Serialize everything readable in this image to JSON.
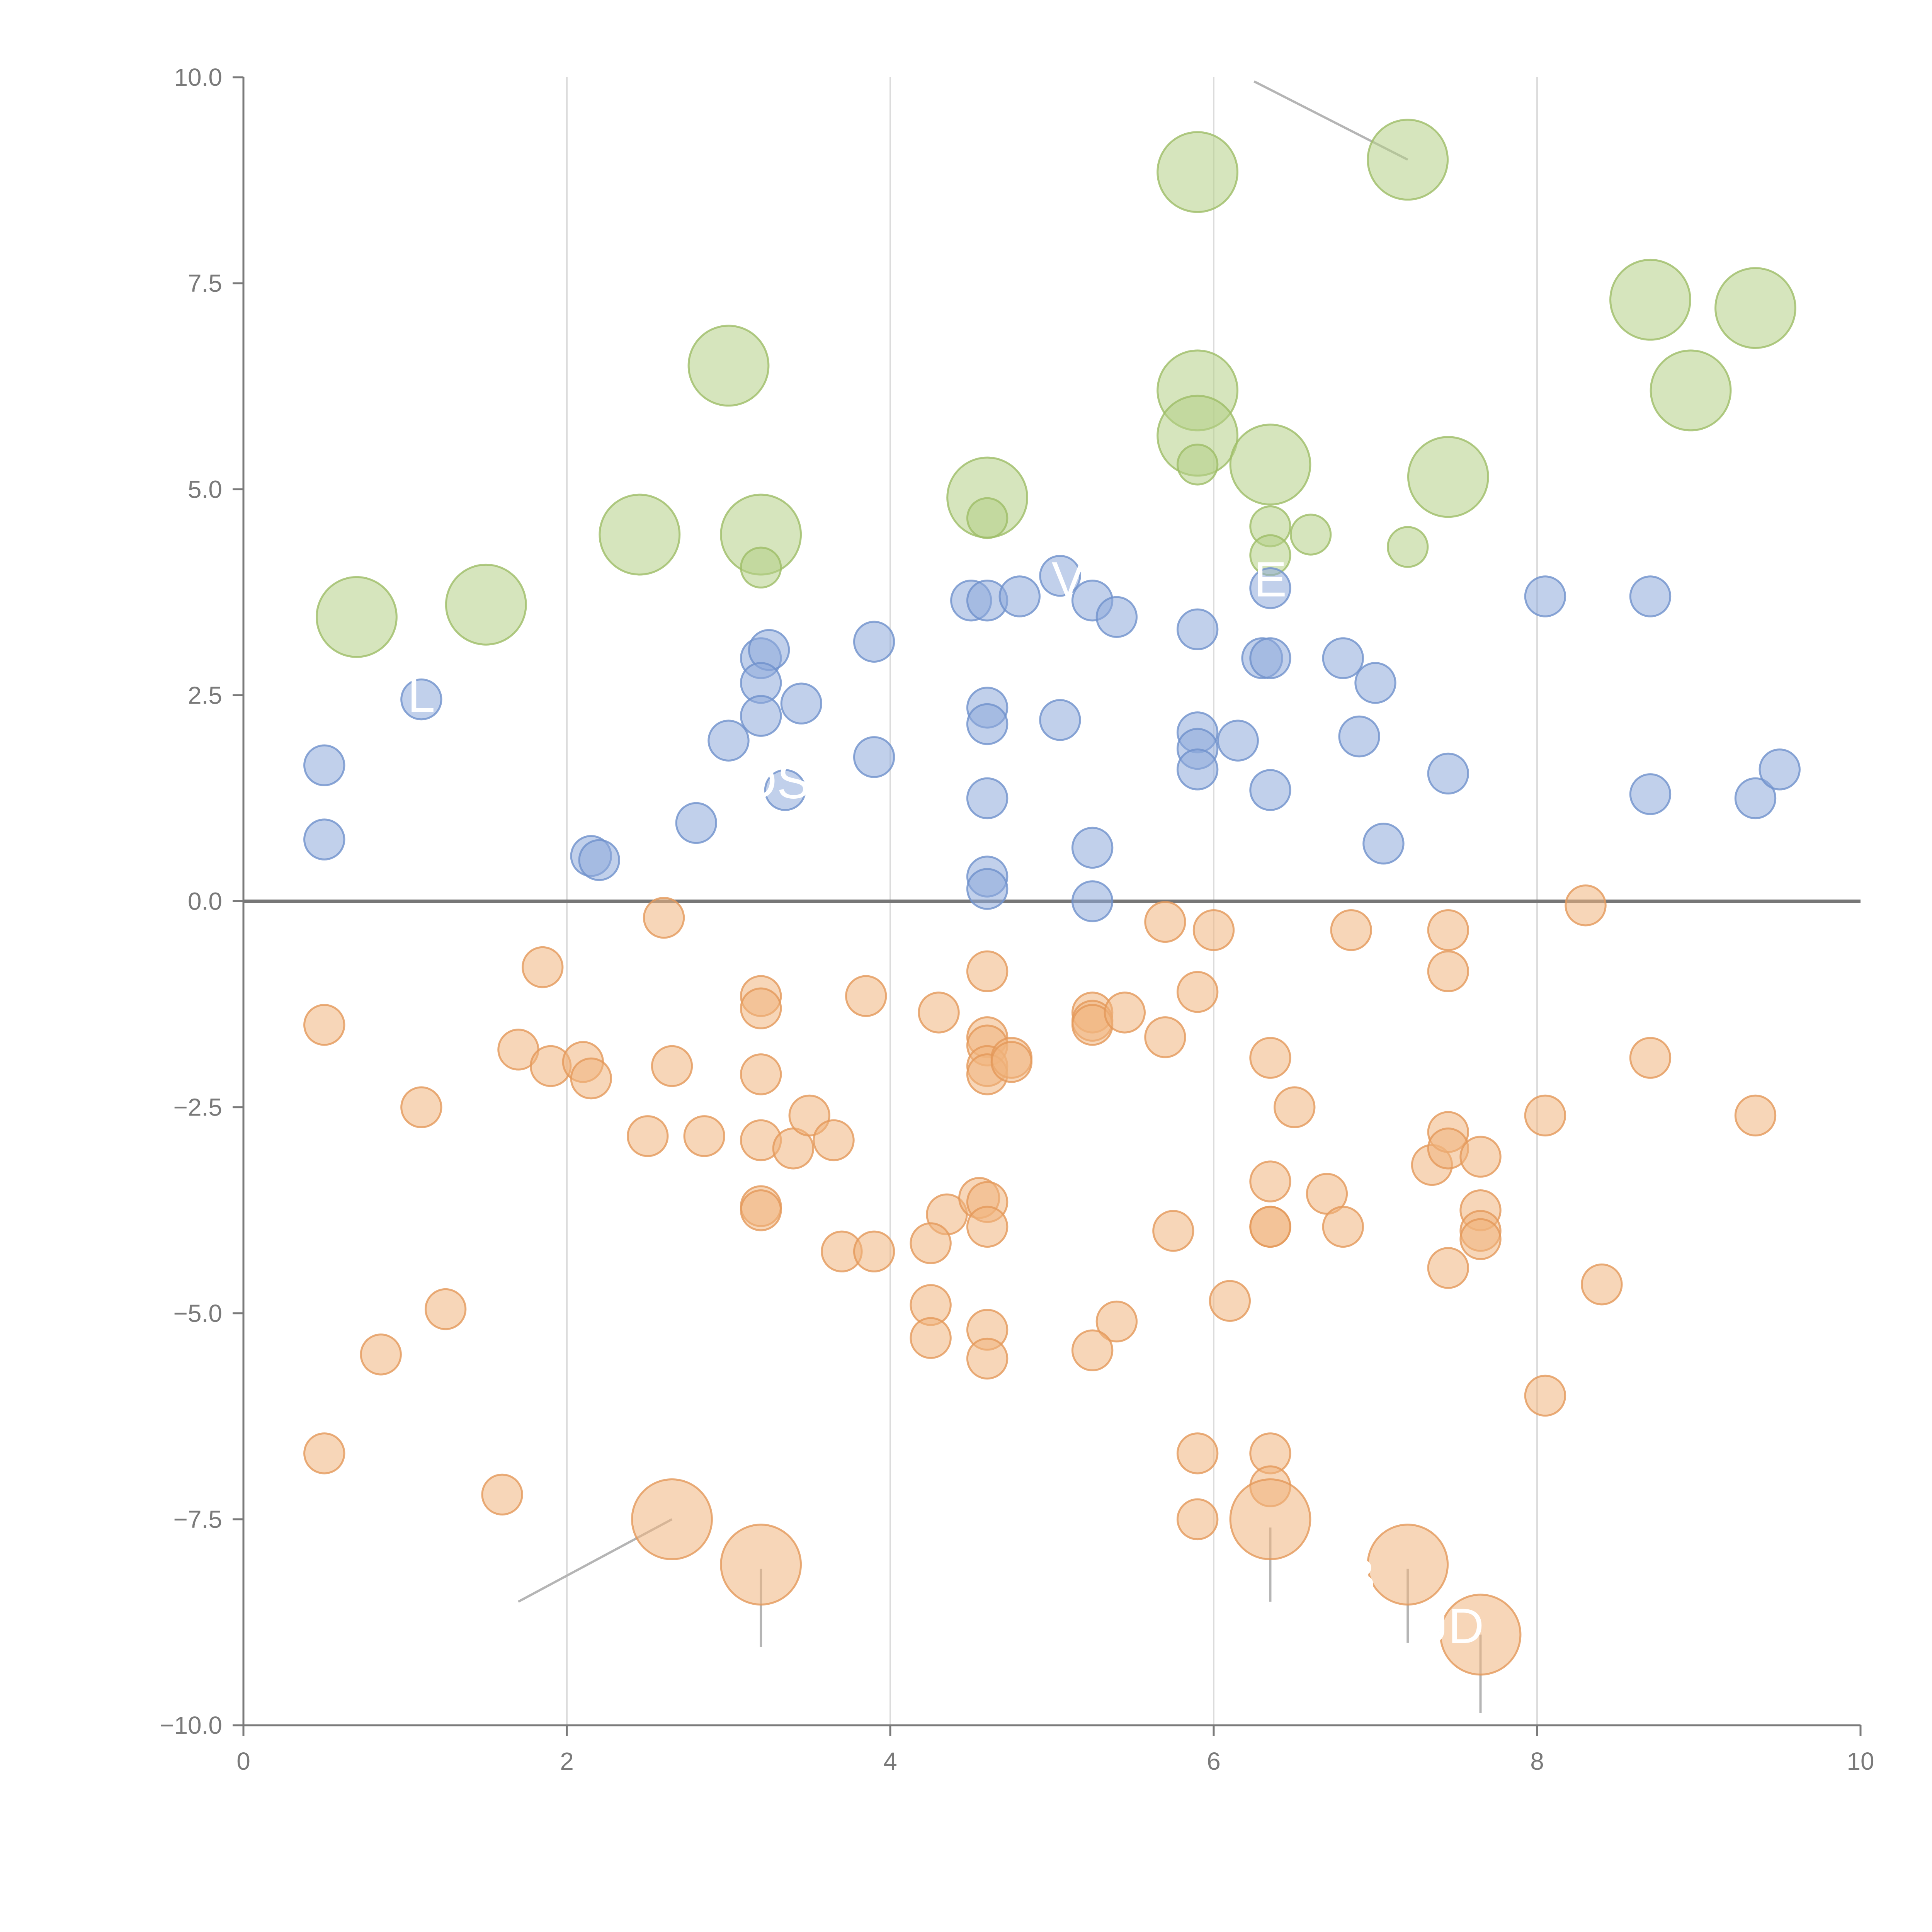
{
  "chart_data": {
    "type": "scatter",
    "title": "",
    "xlabel": "",
    "ylabel": "",
    "xlim": [
      0,
      10
    ],
    "ylim": [
      -10,
      10
    ],
    "x_ticks": [
      0,
      2,
      4,
      6,
      8,
      10
    ],
    "x_tick_labels": [
      "0",
      "2",
      "4",
      "6",
      "8",
      "10"
    ],
    "y_ticks": [
      -10,
      -7.5,
      -5,
      -2.5,
      0,
      2.5,
      5,
      7.5,
      10
    ],
    "y_tick_labels": [
      "−10.0",
      "−7.5",
      "−5.0",
      "−2.5",
      "0.0",
      "2.5",
      "5.0",
      "7.5",
      "10.0"
    ],
    "vertical_gridlines": [
      2,
      4,
      6,
      8
    ],
    "zero_line": true,
    "series": [
      {
        "name": "green",
        "color": "#b5cf87",
        "stroke": "#9dbd66",
        "points": [
          {
            "x": 0.7,
            "y": 3.45,
            "s": 2.2
          },
          {
            "x": 1.5,
            "y": 3.6,
            "s": 2.2
          },
          {
            "x": 2.45,
            "y": 4.45,
            "s": 2.2
          },
          {
            "x": 3.0,
            "y": 6.5,
            "s": 2.2
          },
          {
            "x": 3.2,
            "y": 4.45,
            "s": 2.2
          },
          {
            "x": 3.2,
            "y": 4.05,
            "s": 1.1
          },
          {
            "x": 4.6,
            "y": 4.9,
            "s": 2.2
          },
          {
            "x": 4.6,
            "y": 4.65,
            "s": 1.1
          },
          {
            "x": 5.9,
            "y": 8.85,
            "s": 2.2
          },
          {
            "x": 5.9,
            "y": 6.2,
            "s": 2.2
          },
          {
            "x": 5.9,
            "y": 5.65,
            "s": 2.2
          },
          {
            "x": 5.9,
            "y": 5.3,
            "s": 1.1
          },
          {
            "x": 6.35,
            "y": 5.3,
            "s": 2.2
          },
          {
            "x": 6.35,
            "y": 4.55,
            "s": 1.1
          },
          {
            "x": 6.35,
            "y": 4.2,
            "s": 1.1
          },
          {
            "x": 6.6,
            "y": 4.45,
            "s": 1.1
          },
          {
            "x": 7.2,
            "y": 9.0,
            "s": 2.2
          },
          {
            "x": 7.2,
            "y": 4.3,
            "s": 1.1
          },
          {
            "x": 7.45,
            "y": 5.15,
            "s": 2.2
          },
          {
            "x": 8.7,
            "y": 7.3,
            "s": 2.2
          },
          {
            "x": 8.95,
            "y": 6.2,
            "s": 2.2
          },
          {
            "x": 9.35,
            "y": 7.2,
            "s": 2.2
          }
        ]
      },
      {
        "name": "blue",
        "color": "#8eaadb",
        "stroke": "#6f91cc",
        "points": [
          {
            "x": 0.5,
            "y": 1.65,
            "s": 1.1
          },
          {
            "x": 0.5,
            "y": 0.75,
            "s": 1.1
          },
          {
            "x": 1.1,
            "y": 2.45,
            "s": 1.1
          },
          {
            "x": 2.15,
            "y": 0.55,
            "s": 1.1
          },
          {
            "x": 2.2,
            "y": 0.5,
            "s": 1.1
          },
          {
            "x": 2.8,
            "y": 0.95,
            "s": 1.1
          },
          {
            "x": 3.0,
            "y": 1.95,
            "s": 1.1
          },
          {
            "x": 3.2,
            "y": 2.95,
            "s": 1.1
          },
          {
            "x": 3.25,
            "y": 3.05,
            "s": 1.1
          },
          {
            "x": 3.2,
            "y": 2.65,
            "s": 1.1
          },
          {
            "x": 3.2,
            "y": 2.25,
            "s": 1.1
          },
          {
            "x": 3.45,
            "y": 2.4,
            "s": 1.1
          },
          {
            "x": 3.35,
            "y": 1.35,
            "s": 1.1
          },
          {
            "x": 3.9,
            "y": 3.15,
            "s": 1.1
          },
          {
            "x": 3.9,
            "y": 1.75,
            "s": 1.1
          },
          {
            "x": 4.5,
            "y": 3.65,
            "s": 1.1
          },
          {
            "x": 4.6,
            "y": 3.65,
            "s": 1.1
          },
          {
            "x": 4.8,
            "y": 3.7,
            "s": 1.1
          },
          {
            "x": 5.05,
            "y": 3.95,
            "s": 1.1
          },
          {
            "x": 5.25,
            "y": 3.65,
            "s": 1.1
          },
          {
            "x": 5.4,
            "y": 3.45,
            "s": 1.1
          },
          {
            "x": 4.6,
            "y": 2.35,
            "s": 1.1
          },
          {
            "x": 4.6,
            "y": 2.15,
            "s": 1.1
          },
          {
            "x": 5.05,
            "y": 2.2,
            "s": 1.1
          },
          {
            "x": 4.6,
            "y": 1.25,
            "s": 1.1
          },
          {
            "x": 4.6,
            "y": 0.3,
            "s": 1.1
          },
          {
            "x": 4.6,
            "y": 0.15,
            "s": 1.1
          },
          {
            "x": 5.25,
            "y": 0.65,
            "s": 1.1
          },
          {
            "x": 5.25,
            "y": 0.0,
            "s": 1.1
          },
          {
            "x": 5.9,
            "y": 3.3,
            "s": 1.1
          },
          {
            "x": 5.9,
            "y": 2.05,
            "s": 1.1
          },
          {
            "x": 5.9,
            "y": 1.85,
            "s": 1.1
          },
          {
            "x": 5.9,
            "y": 1.6,
            "s": 1.1
          },
          {
            "x": 6.15,
            "y": 1.95,
            "s": 1.1
          },
          {
            "x": 6.35,
            "y": 3.8,
            "s": 1.1
          },
          {
            "x": 6.3,
            "y": 2.95,
            "s": 1.1
          },
          {
            "x": 6.35,
            "y": 2.95,
            "s": 1.1
          },
          {
            "x": 6.35,
            "y": 1.35,
            "s": 1.1
          },
          {
            "x": 6.8,
            "y": 2.95,
            "s": 1.1
          },
          {
            "x": 7.0,
            "y": 2.65,
            "s": 1.1
          },
          {
            "x": 6.9,
            "y": 2.0,
            "s": 1.1
          },
          {
            "x": 7.05,
            "y": 0.7,
            "s": 1.1
          },
          {
            "x": 7.45,
            "y": 1.55,
            "s": 1.1
          },
          {
            "x": 8.05,
            "y": 3.7,
            "s": 1.1
          },
          {
            "x": 8.7,
            "y": 3.7,
            "s": 1.1
          },
          {
            "x": 8.7,
            "y": 1.3,
            "s": 1.1
          },
          {
            "x": 9.35,
            "y": 1.25,
            "s": 1.1
          },
          {
            "x": 9.5,
            "y": 1.6,
            "s": 1.1
          }
        ]
      },
      {
        "name": "orange",
        "color": "#f0b47d",
        "stroke": "#e3995a",
        "points": [
          {
            "x": 0.5,
            "y": -1.5,
            "s": 1.1
          },
          {
            "x": 0.5,
            "y": -6.7,
            "s": 1.1
          },
          {
            "x": 0.85,
            "y": -5.5,
            "s": 1.1
          },
          {
            "x": 1.1,
            "y": -2.5,
            "s": 1.1
          },
          {
            "x": 1.25,
            "y": -4.95,
            "s": 1.1
          },
          {
            "x": 1.6,
            "y": -7.2,
            "s": 1.1
          },
          {
            "x": 1.7,
            "y": -1.8,
            "s": 1.1
          },
          {
            "x": 1.85,
            "y": -0.8,
            "s": 1.1
          },
          {
            "x": 1.9,
            "y": -2.0,
            "s": 1.1
          },
          {
            "x": 2.1,
            "y": -1.95,
            "s": 1.1
          },
          {
            "x": 2.15,
            "y": -2.15,
            "s": 1.1
          },
          {
            "x": 2.5,
            "y": -2.85,
            "s": 1.1
          },
          {
            "x": 2.6,
            "y": -0.2,
            "s": 1.1
          },
          {
            "x": 2.65,
            "y": -2.0,
            "s": 1.1
          },
          {
            "x": 2.85,
            "y": -2.85,
            "s": 1.1
          },
          {
            "x": 2.65,
            "y": -7.5,
            "s": 2.2
          },
          {
            "x": 3.2,
            "y": -8.05,
            "s": 2.2
          },
          {
            "x": 3.2,
            "y": -1.15,
            "s": 1.1
          },
          {
            "x": 3.2,
            "y": -1.3,
            "s": 1.1
          },
          {
            "x": 3.2,
            "y": -2.1,
            "s": 1.1
          },
          {
            "x": 3.2,
            "y": -2.9,
            "s": 1.1
          },
          {
            "x": 3.4,
            "y": -3.0,
            "s": 1.1
          },
          {
            "x": 3.5,
            "y": -2.6,
            "s": 1.1
          },
          {
            "x": 3.65,
            "y": -2.9,
            "s": 1.1
          },
          {
            "x": 3.2,
            "y": -3.7,
            "s": 1.1
          },
          {
            "x": 3.2,
            "y": -3.75,
            "s": 1.1
          },
          {
            "x": 3.7,
            "y": -4.25,
            "s": 1.1
          },
          {
            "x": 3.9,
            "y": -4.25,
            "s": 1.1
          },
          {
            "x": 3.85,
            "y": -1.15,
            "s": 1.1
          },
          {
            "x": 4.3,
            "y": -1.35,
            "s": 1.1
          },
          {
            "x": 4.35,
            "y": -3.8,
            "s": 1.1
          },
          {
            "x": 4.25,
            "y": -4.15,
            "s": 1.1
          },
          {
            "x": 4.25,
            "y": -4.9,
            "s": 1.1
          },
          {
            "x": 4.25,
            "y": -5.3,
            "s": 1.1
          },
          {
            "x": 4.55,
            "y": -3.6,
            "s": 1.1
          },
          {
            "x": 4.6,
            "y": -3.65,
            "s": 1.1
          },
          {
            "x": 4.6,
            "y": -3.95,
            "s": 1.1
          },
          {
            "x": 4.6,
            "y": -0.85,
            "s": 1.1
          },
          {
            "x": 4.6,
            "y": -1.65,
            "s": 1.1
          },
          {
            "x": 4.6,
            "y": -1.75,
            "s": 1.1
          },
          {
            "x": 4.6,
            "y": -2.0,
            "s": 1.1
          },
          {
            "x": 4.6,
            "y": -2.1,
            "s": 1.1
          },
          {
            "x": 4.75,
            "y": -1.9,
            "s": 1.1
          },
          {
            "x": 4.75,
            "y": -1.95,
            "s": 1.1
          },
          {
            "x": 4.6,
            "y": -5.2,
            "s": 1.1
          },
          {
            "x": 4.6,
            "y": -5.55,
            "s": 1.1
          },
          {
            "x": 5.25,
            "y": -1.35,
            "s": 1.1
          },
          {
            "x": 5.25,
            "y": -1.45,
            "s": 1.1
          },
          {
            "x": 5.25,
            "y": -1.5,
            "s": 1.1
          },
          {
            "x": 5.45,
            "y": -1.35,
            "s": 1.1
          },
          {
            "x": 5.4,
            "y": -5.1,
            "s": 1.1
          },
          {
            "x": 5.25,
            "y": -5.45,
            "s": 1.1
          },
          {
            "x": 5.7,
            "y": -0.25,
            "s": 1.1
          },
          {
            "x": 5.7,
            "y": -1.65,
            "s": 1.1
          },
          {
            "x": 5.9,
            "y": -1.1,
            "s": 1.1
          },
          {
            "x": 6.0,
            "y": -0.35,
            "s": 1.1
          },
          {
            "x": 5.75,
            "y": -4.0,
            "s": 1.1
          },
          {
            "x": 5.9,
            "y": -6.7,
            "s": 1.1
          },
          {
            "x": 5.9,
            "y": -7.5,
            "s": 1.1
          },
          {
            "x": 6.1,
            "y": -4.85,
            "s": 1.1
          },
          {
            "x": 6.35,
            "y": -1.9,
            "s": 1.1
          },
          {
            "x": 6.5,
            "y": -2.5,
            "s": 1.1
          },
          {
            "x": 6.35,
            "y": -3.4,
            "s": 1.1
          },
          {
            "x": 6.35,
            "y": -3.95,
            "s": 1.1
          },
          {
            "x": 6.35,
            "y": -3.95,
            "s": 1.1
          },
          {
            "x": 6.35,
            "y": -6.7,
            "s": 1.1
          },
          {
            "x": 6.35,
            "y": -7.1,
            "s": 1.1
          },
          {
            "x": 6.35,
            "y": -7.5,
            "s": 2.2
          },
          {
            "x": 6.7,
            "y": -3.55,
            "s": 1.1
          },
          {
            "x": 6.8,
            "y": -3.95,
            "s": 1.1
          },
          {
            "x": 6.85,
            "y": -0.35,
            "s": 1.1
          },
          {
            "x": 7.2,
            "y": -8.05,
            "s": 2.2
          },
          {
            "x": 7.35,
            "y": -3.2,
            "s": 1.1
          },
          {
            "x": 7.45,
            "y": -0.35,
            "s": 1.1
          },
          {
            "x": 7.45,
            "y": -0.85,
            "s": 1.1
          },
          {
            "x": 7.45,
            "y": -2.8,
            "s": 1.1
          },
          {
            "x": 7.45,
            "y": -3.0,
            "s": 1.1
          },
          {
            "x": 7.45,
            "y": -4.45,
            "s": 1.1
          },
          {
            "x": 7.65,
            "y": -3.1,
            "s": 1.1
          },
          {
            "x": 7.65,
            "y": -3.75,
            "s": 1.1
          },
          {
            "x": 7.65,
            "y": -4.0,
            "s": 1.1
          },
          {
            "x": 7.65,
            "y": -4.1,
            "s": 1.1
          },
          {
            "x": 7.65,
            "y": -8.9,
            "s": 2.2
          },
          {
            "x": 8.05,
            "y": -2.6,
            "s": 1.1
          },
          {
            "x": 8.05,
            "y": -6.0,
            "s": 1.1
          },
          {
            "x": 8.3,
            "y": -0.05,
            "s": 1.1
          },
          {
            "x": 8.4,
            "y": -4.65,
            "s": 1.1
          },
          {
            "x": 8.7,
            "y": -1.9,
            "s": 1.1
          },
          {
            "x": 9.35,
            "y": -2.6,
            "s": 1.1
          }
        ]
      }
    ],
    "annotations": [
      {
        "text": "L",
        "x": 1.1,
        "y": 2.3
      },
      {
        "text": "IDSX",
        "x": 3.35,
        "y": 1.25
      },
      {
        "text": "V",
        "x": 5.1,
        "y": 3.7
      },
      {
        "text": "E",
        "x": 6.35,
        "y": 3.7
      },
      {
        "text": "B",
        "x": 6.9,
        "y": -8.4
      },
      {
        "text": "UD",
        "x": 7.45,
        "y": -9.0
      }
    ],
    "leader_lines": [
      {
        "x1": 6.25,
        "y1": 9.95,
        "x2": 7.2,
        "y2": 9.0
      },
      {
        "x1": 1.7,
        "y1": -8.5,
        "x2": 2.65,
        "y2": -7.5
      },
      {
        "x1": 3.2,
        "y1": -8.1,
        "x2": 3.2,
        "y2": -9.05
      },
      {
        "x1": 6.35,
        "y1": -7.6,
        "x2": 6.35,
        "y2": -8.5
      },
      {
        "x1": 7.2,
        "y1": -8.1,
        "x2": 7.2,
        "y2": -9.0
      },
      {
        "x1": 7.65,
        "y1": -8.9,
        "x2": 7.65,
        "y2": -9.85
      }
    ]
  }
}
